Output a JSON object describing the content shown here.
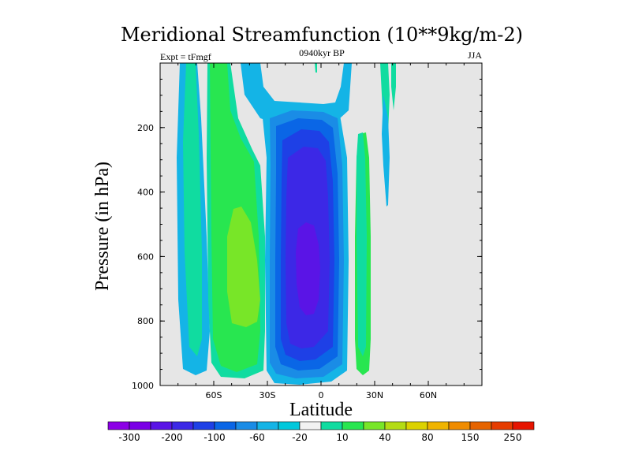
{
  "chart_data": {
    "type": "contour",
    "title": "Meridional Streamfunction (10**9kg/m-2)",
    "left_label": "Expt = tFmgf",
    "center_label": "0940kyr BP",
    "right_label": "JJA",
    "xlabel": "Latitude",
    "ylabel": "Pressure (in hPa)",
    "xlim": [
      -90,
      90
    ],
    "ylim": [
      0,
      1000
    ],
    "y_reversed": true,
    "x_ticks": [
      {
        "value": -60,
        "label": "60S"
      },
      {
        "value": -30,
        "label": "30S"
      },
      {
        "value": 0,
        "label": "0"
      },
      {
        "value": 30,
        "label": "30N"
      },
      {
        "value": 60,
        "label": "60N"
      }
    ],
    "y_ticks": [
      {
        "value": 200,
        "label": "200"
      },
      {
        "value": 400,
        "label": "400"
      },
      {
        "value": 600,
        "label": "600"
      },
      {
        "value": 800,
        "label": "800"
      },
      {
        "value": 1000,
        "label": "1000"
      }
    ],
    "background_color": "#e6e6e6",
    "colorbar": {
      "labels": [
        "-300",
        "-200",
        "-100",
        "-60",
        "-20",
        "10",
        "40",
        "80",
        "150",
        "250"
      ],
      "colors": [
        "#8c00e6",
        "#7a00e6",
        "#5a14e6",
        "#3c28e6",
        "#1e40e6",
        "#0a66e6",
        "#1a8ce6",
        "#14b4e6",
        "#00c8dc",
        "#f2f2f2",
        "#10dca0",
        "#28e650",
        "#78e628",
        "#b4dc14",
        "#dcd200",
        "#f0b400",
        "#f08c00",
        "#e66400",
        "#e63c00",
        "#e61400"
      ]
    },
    "regions": [
      {
        "name": "sh-polar-cell",
        "sign": "positive",
        "lat_range": [
          -80,
          -68
        ],
        "p_range": [
          0,
          960
        ],
        "levels": [
          "10",
          "40"
        ]
      },
      {
        "name": "sh-ferrel-cell",
        "sign": "positive",
        "lat_range": [
          -64,
          -36
        ],
        "p_range": [
          0,
          980
        ],
        "peak_value": 80,
        "peak_lat": -48,
        "peak_p": 650
      },
      {
        "name": "sh-hadley-cell",
        "sign": "negative",
        "lat_range": [
          -33,
          12
        ],
        "p_range": [
          130,
          990
        ],
        "peak_value": -200,
        "peak_lat": -5,
        "peak_p": 650
      },
      {
        "name": "nh-hadley-cell",
        "sign": "positive",
        "lat_range": [
          20,
          28
        ],
        "p_range": [
          210,
          970
        ],
        "levels": [
          "10",
          "40"
        ]
      },
      {
        "name": "upper-troposphere-features",
        "sign": "mixed",
        "lat_range": [
          -40,
          44
        ],
        "p_range": [
          0,
          440
        ]
      }
    ]
  }
}
